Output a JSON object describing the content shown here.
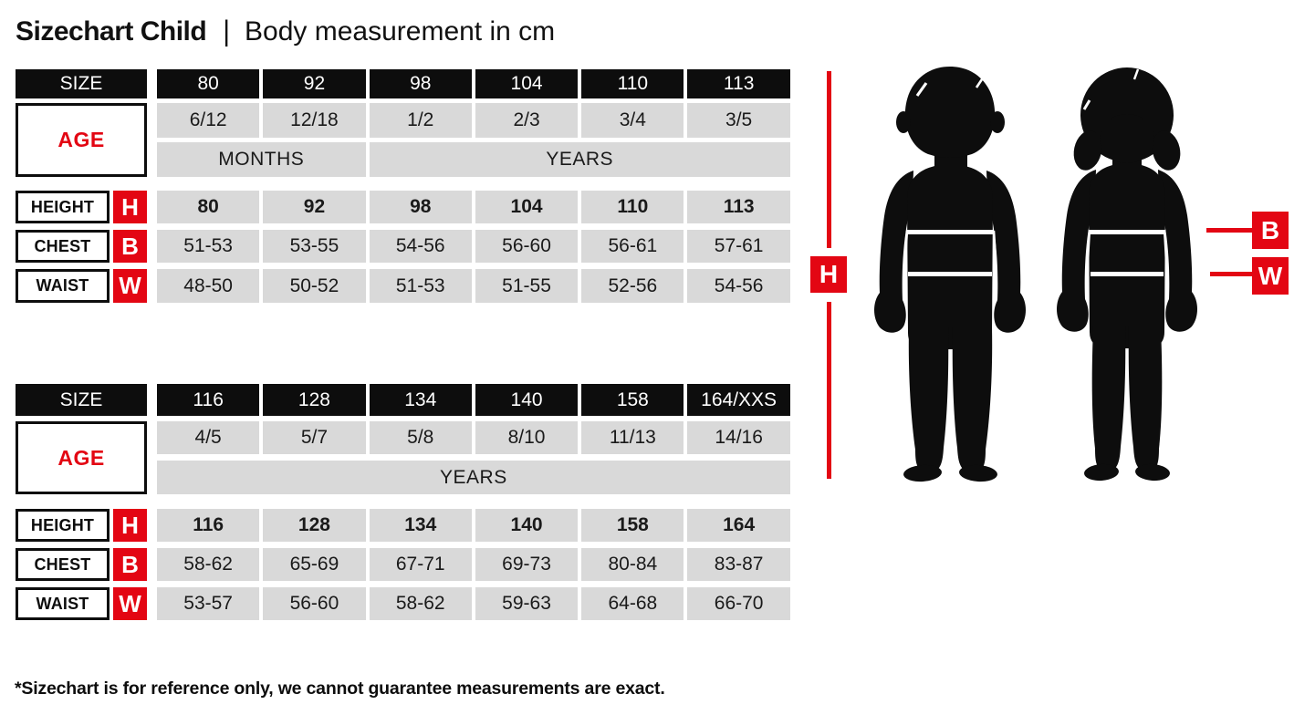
{
  "title": {
    "main": "Sizechart Child",
    "separator": "|",
    "subtitle": "Body measurement in cm"
  },
  "colors": {
    "red": "#e30613",
    "black": "#0d0d0d",
    "cell_gray": "#d9d9d9"
  },
  "tables": [
    {
      "size_label": "SIZE",
      "age_label": "AGE",
      "sizes": [
        "80",
        "92",
        "98",
        "104",
        "110",
        "113"
      ],
      "ages": [
        "6/12",
        "12/18",
        "1/2",
        "2/3",
        "3/4",
        "3/5"
      ],
      "age_unit_bands": [
        {
          "label": "MONTHS",
          "span": 2
        },
        {
          "label": "YEARS",
          "span": 4
        }
      ],
      "measure_rows": [
        {
          "label": "HEIGHT",
          "letter": "H",
          "bold_values": true,
          "values": [
            "80",
            "92",
            "98",
            "104",
            "110",
            "113"
          ]
        },
        {
          "label": "CHEST",
          "letter": "B",
          "bold_values": false,
          "values": [
            "51-53",
            "53-55",
            "54-56",
            "56-60",
            "56-61",
            "57-61"
          ]
        },
        {
          "label": "WAIST",
          "letter": "W",
          "bold_values": false,
          "values": [
            "48-50",
            "50-52",
            "51-53",
            "51-55",
            "52-56",
            "54-56"
          ]
        }
      ]
    },
    {
      "size_label": "SIZE",
      "age_label": "AGE",
      "sizes": [
        "116",
        "128",
        "134",
        "140",
        "158",
        "164/XXS"
      ],
      "ages": [
        "4/5",
        "5/7",
        "5/8",
        "8/10",
        "11/13",
        "14/16"
      ],
      "age_unit_bands": [
        {
          "label": "YEARS",
          "span": 6
        }
      ],
      "measure_rows": [
        {
          "label": "HEIGHT",
          "letter": "H",
          "bold_values": true,
          "values": [
            "116",
            "128",
            "134",
            "140",
            "158",
            "164"
          ]
        },
        {
          "label": "CHEST",
          "letter": "B",
          "bold_values": false,
          "values": [
            "58-62",
            "65-69",
            "67-71",
            "69-73",
            "80-84",
            "83-87"
          ]
        },
        {
          "label": "WAIST",
          "letter": "W",
          "bold_values": false,
          "values": [
            "53-57",
            "56-60",
            "58-62",
            "59-63",
            "64-68",
            "66-70"
          ]
        }
      ]
    }
  ],
  "figure": {
    "height_marker": "H",
    "chest_marker": "B",
    "waist_marker": "W"
  },
  "footnote": "*Sizechart is for reference only, we cannot guarantee measurements are exact."
}
